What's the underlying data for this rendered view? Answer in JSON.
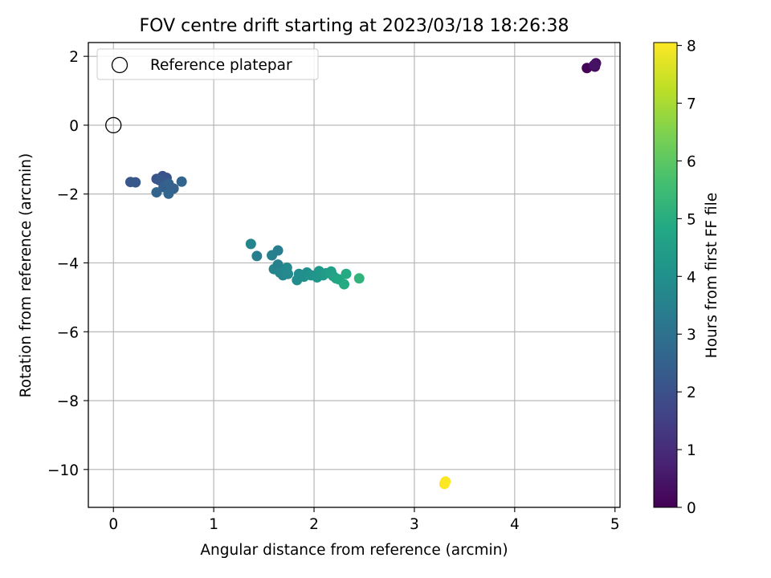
{
  "chart_data": {
    "type": "scatter",
    "title": "FOV centre drift starting at 2023/03/18 18:26:38",
    "xlabel": "Angular distance from reference (arcmin)",
    "ylabel": "Rotation from reference (arcmin)",
    "xlim": [
      -0.25,
      5.05
    ],
    "ylim": [
      -11.1,
      2.4
    ],
    "xticks": [
      "0",
      "1",
      "2",
      "3",
      "4",
      "5"
    ],
    "xtick_values": [
      0,
      1,
      2,
      3,
      4,
      5
    ],
    "yticks": [
      "−10",
      "−8",
      "−6",
      "−4",
      "−2",
      "0",
      "2"
    ],
    "ytick_values": [
      -10,
      -8,
      -6,
      -4,
      -2,
      0,
      2
    ],
    "grid": true,
    "legend": {
      "position": "top-left",
      "entries": [
        "Reference platepar"
      ]
    },
    "reference_point": {
      "x": 0,
      "y": 0
    },
    "colorbar": {
      "label": "Hours from first FF file",
      "colormap": "viridis",
      "range": [
        0,
        8.05
      ],
      "ticks": [
        "0",
        "1",
        "2",
        "3",
        "4",
        "5",
        "6",
        "7",
        "8"
      ],
      "tick_values": [
        0,
        1,
        2,
        3,
        4,
        5,
        6,
        7,
        8
      ]
    },
    "series": [
      {
        "points": [
          {
            "x": 4.72,
            "y": 1.66,
            "c": 0.1
          },
          {
            "x": 4.8,
            "y": 1.7,
            "c": 0.2
          },
          {
            "x": 4.81,
            "y": 1.8,
            "c": 0.3
          },
          {
            "x": 4.79,
            "y": 1.74,
            "c": 0.4
          },
          {
            "x": 0.17,
            "y": -1.65,
            "c": 2.2
          },
          {
            "x": 0.22,
            "y": -1.66,
            "c": 2.2
          },
          {
            "x": 0.43,
            "y": -1.56,
            "c": 2.1
          },
          {
            "x": 0.49,
            "y": -1.48,
            "c": 2.0
          },
          {
            "x": 0.53,
            "y": -1.53,
            "c": 2.1
          },
          {
            "x": 0.46,
            "y": -1.6,
            "c": 2.2
          },
          {
            "x": 0.5,
            "y": -1.8,
            "c": 2.4
          },
          {
            "x": 0.55,
            "y": -1.7,
            "c": 2.5
          },
          {
            "x": 0.6,
            "y": -1.84,
            "c": 2.5
          },
          {
            "x": 0.68,
            "y": -1.64,
            "c": 2.6
          },
          {
            "x": 0.43,
            "y": -1.95,
            "c": 2.6
          },
          {
            "x": 0.55,
            "y": -1.99,
            "c": 2.6
          },
          {
            "x": 1.37,
            "y": -3.45,
            "c": 3.6
          },
          {
            "x": 1.43,
            "y": -3.8,
            "c": 3.4
          },
          {
            "x": 1.58,
            "y": -3.78,
            "c": 3.5
          },
          {
            "x": 1.64,
            "y": -3.64,
            "c": 3.4
          },
          {
            "x": 1.6,
            "y": -4.18,
            "c": 3.6
          },
          {
            "x": 1.64,
            "y": -4.05,
            "c": 3.5
          },
          {
            "x": 1.66,
            "y": -4.28,
            "c": 3.7
          },
          {
            "x": 1.69,
            "y": -4.36,
            "c": 3.7
          },
          {
            "x": 1.73,
            "y": -4.14,
            "c": 3.8
          },
          {
            "x": 1.74,
            "y": -4.32,
            "c": 3.8
          },
          {
            "x": 1.83,
            "y": -4.5,
            "c": 3.9
          },
          {
            "x": 1.85,
            "y": -4.32,
            "c": 3.9
          },
          {
            "x": 1.9,
            "y": -4.4,
            "c": 4.0
          },
          {
            "x": 1.93,
            "y": -4.28,
            "c": 4.0
          },
          {
            "x": 1.97,
            "y": -4.36,
            "c": 4.1
          },
          {
            "x": 2.03,
            "y": -4.42,
            "c": 4.2
          },
          {
            "x": 2.05,
            "y": -4.24,
            "c": 4.2
          },
          {
            "x": 2.09,
            "y": -4.36,
            "c": 4.3
          },
          {
            "x": 2.12,
            "y": -4.3,
            "c": 4.4
          },
          {
            "x": 2.17,
            "y": -4.25,
            "c": 4.5
          },
          {
            "x": 2.19,
            "y": -4.38,
            "c": 4.6
          },
          {
            "x": 2.22,
            "y": -4.45,
            "c": 4.7
          },
          {
            "x": 2.25,
            "y": -4.48,
            "c": 4.8
          },
          {
            "x": 2.3,
            "y": -4.62,
            "c": 4.9
          },
          {
            "x": 2.32,
            "y": -4.32,
            "c": 4.9
          },
          {
            "x": 2.45,
            "y": -4.45,
            "c": 5.2
          },
          {
            "x": 3.31,
            "y": -10.35,
            "c": 8.0
          },
          {
            "x": 3.3,
            "y": -10.42,
            "c": 8.05
          }
        ]
      }
    ]
  }
}
